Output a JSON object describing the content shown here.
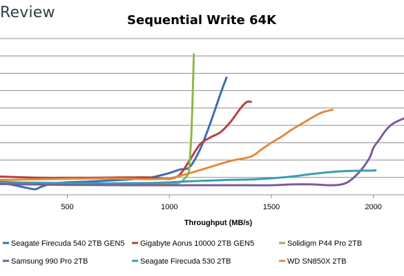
{
  "brand": "Review",
  "chart_data": {
    "type": "line",
    "title": "Sequential Write 64K",
    "xlabel": "Throughput (MB/s)",
    "ylabel": "",
    "xlim": [
      170,
      2150
    ],
    "ylim": [
      0,
      9
    ],
    "xticks": [
      500,
      1000,
      1500,
      2000
    ],
    "grid": true,
    "legend_position": "bottom",
    "series": [
      {
        "name": "Seagate Firecuda 540 2TB GEN5",
        "color": "#3b6cb4",
        "points": [
          [
            170,
            0.72
          ],
          [
            220,
            0.6
          ],
          [
            280,
            0.45
          ],
          [
            320,
            0.35
          ],
          [
            345,
            0.32
          ],
          [
            370,
            0.45
          ],
          [
            420,
            0.62
          ],
          [
            500,
            0.72
          ],
          [
            600,
            0.76
          ],
          [
            700,
            0.82
          ],
          [
            800,
            0.88
          ],
          [
            900,
            0.98
          ],
          [
            950,
            1.1
          ],
          [
            1000,
            1.25
          ],
          [
            1050,
            1.45
          ],
          [
            1100,
            1.6
          ],
          [
            1150,
            2.6
          ],
          [
            1200,
            4.1
          ],
          [
            1250,
            5.8
          ],
          [
            1280,
            6.75
          ]
        ]
      },
      {
        "name": "Gigabyte Aorus 10000 2TB GEN5",
        "color": "#b3413d",
        "points": [
          [
            170,
            1.05
          ],
          [
            300,
            1.0
          ],
          [
            400,
            0.98
          ],
          [
            500,
            0.98
          ],
          [
            600,
            0.98
          ],
          [
            700,
            0.99
          ],
          [
            800,
            1.0
          ],
          [
            900,
            1.0
          ],
          [
            950,
            0.95
          ],
          [
            1000,
            0.92
          ],
          [
            1050,
            1.15
          ],
          [
            1100,
            2.0
          ],
          [
            1150,
            2.9
          ],
          [
            1200,
            3.3
          ],
          [
            1250,
            3.6
          ],
          [
            1300,
            4.2
          ],
          [
            1350,
            5.0
          ],
          [
            1380,
            5.35
          ],
          [
            1400,
            5.35
          ]
        ]
      },
      {
        "name": "Solidigm P44 Pro 2TB",
        "color": "#8fb648",
        "points": [
          [
            170,
            0.65
          ],
          [
            300,
            0.62
          ],
          [
            400,
            0.58
          ],
          [
            500,
            0.56
          ],
          [
            600,
            0.56
          ],
          [
            700,
            0.56
          ],
          [
            800,
            0.57
          ],
          [
            900,
            0.58
          ],
          [
            1000,
            0.62
          ],
          [
            1050,
            0.7
          ],
          [
            1080,
            1.0
          ],
          [
            1095,
            1.3
          ],
          [
            1100,
            2.0
          ],
          [
            1108,
            3.5
          ],
          [
            1115,
            6.0
          ],
          [
            1120,
            8.1
          ]
        ]
      },
      {
        "name": "Samsung 990 Pro 2TB",
        "color": "#7b5a9b",
        "points": [
          [
            170,
            0.62
          ],
          [
            300,
            0.6
          ],
          [
            500,
            0.58
          ],
          [
            800,
            0.55
          ],
          [
            1100,
            0.55
          ],
          [
            1300,
            0.55
          ],
          [
            1500,
            0.55
          ],
          [
            1600,
            0.6
          ],
          [
            1700,
            0.6
          ],
          [
            1800,
            0.55
          ],
          [
            1870,
            0.7
          ],
          [
            1930,
            1.3
          ],
          [
            1980,
            2.1
          ],
          [
            2000,
            2.7
          ],
          [
            2030,
            3.2
          ],
          [
            2060,
            3.7
          ],
          [
            2090,
            4.05
          ],
          [
            2120,
            4.25
          ],
          [
            2150,
            4.4
          ]
        ]
      },
      {
        "name": "Seagate Firecuda 530 2TB",
        "color": "#3a9cb1",
        "points": [
          [
            170,
            0.75
          ],
          [
            300,
            0.7
          ],
          [
            500,
            0.68
          ],
          [
            700,
            0.66
          ],
          [
            900,
            0.68
          ],
          [
            1000,
            0.72
          ],
          [
            1100,
            0.78
          ],
          [
            1200,
            0.82
          ],
          [
            1300,
            0.86
          ],
          [
            1400,
            0.88
          ],
          [
            1500,
            0.95
          ],
          [
            1600,
            1.05
          ],
          [
            1700,
            1.2
          ],
          [
            1800,
            1.32
          ],
          [
            1900,
            1.38
          ],
          [
            2000,
            1.4
          ],
          [
            2010,
            1.42
          ]
        ]
      },
      {
        "name": "WD SN850X 2TB",
        "color": "#e48a3a",
        "points": [
          [
            170,
            0.85
          ],
          [
            300,
            0.88
          ],
          [
            400,
            0.9
          ],
          [
            500,
            0.92
          ],
          [
            600,
            0.93
          ],
          [
            700,
            0.94
          ],
          [
            800,
            0.92
          ],
          [
            900,
            0.9
          ],
          [
            1000,
            0.95
          ],
          [
            1100,
            1.25
          ],
          [
            1200,
            1.6
          ],
          [
            1300,
            1.95
          ],
          [
            1400,
            2.2
          ],
          [
            1450,
            2.6
          ],
          [
            1500,
            3.0
          ],
          [
            1550,
            3.35
          ],
          [
            1600,
            3.75
          ],
          [
            1650,
            4.1
          ],
          [
            1700,
            4.45
          ],
          [
            1750,
            4.75
          ],
          [
            1800,
            4.9
          ]
        ]
      }
    ]
  }
}
